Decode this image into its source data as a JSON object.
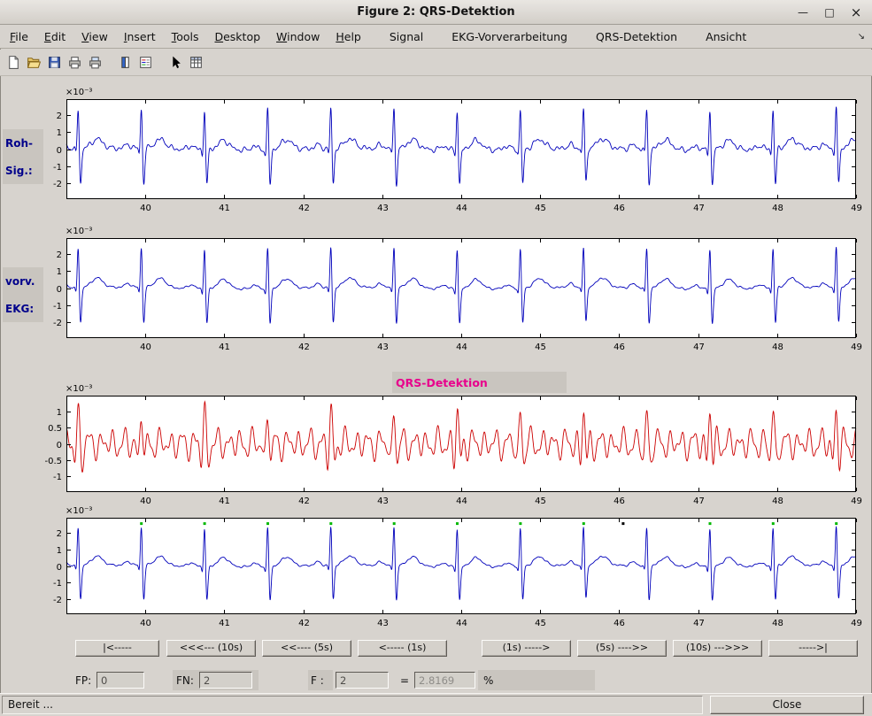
{
  "window": {
    "title": "Figure 2: QRS-Detektion",
    "minimize_glyph": "—",
    "maximize_glyph": "□",
    "close_glyph": "×"
  },
  "menu": {
    "overflow_glyph": "↘",
    "items": [
      {
        "id": "file",
        "label": "File",
        "accel": true
      },
      {
        "id": "edit",
        "label": "Edit",
        "accel": true
      },
      {
        "id": "view",
        "label": "View",
        "accel": true
      },
      {
        "id": "insert",
        "label": "Insert",
        "accel": true
      },
      {
        "id": "tools",
        "label": "Tools",
        "accel": true
      },
      {
        "id": "desktop",
        "label": "Desktop",
        "accel": true
      },
      {
        "id": "window",
        "label": "Window",
        "accel": true
      },
      {
        "id": "help",
        "label": "Help",
        "accel": true
      },
      {
        "id": "signal",
        "label": "Signal",
        "accel": false,
        "gap": true
      },
      {
        "id": "ekg-vorverarbeitung",
        "label": "EKG-Vorverarbeitung",
        "accel": false,
        "gap": true
      },
      {
        "id": "qrs-detektion",
        "label": "QRS-Detektion",
        "accel": false,
        "gap": true
      },
      {
        "id": "ansicht",
        "label": "Ansicht",
        "accel": false,
        "gap": true
      }
    ]
  },
  "toolbar": {
    "icons": [
      "new-file-icon",
      "open-folder-icon",
      "save-icon",
      "print-icon",
      "print-preview-icon",
      "colorbar-icon",
      "legend-icon",
      "pointer-icon",
      "plot-browser-icon"
    ]
  },
  "chart_data": {
    "type": "line",
    "xlim": [
      39,
      49
    ],
    "xticks": [
      40,
      41,
      42,
      43,
      44,
      45,
      46,
      47,
      48,
      49
    ],
    "x_unit": "s",
    "amplitude_scale": "1e-3",
    "beat_times": [
      39.15,
      39.95,
      40.75,
      41.55,
      42.35,
      43.15,
      43.95,
      44.75,
      45.55,
      46.35,
      47.15,
      47.95,
      48.75
    ],
    "plots": [
      {
        "name": "roh-signal",
        "label_lines": [
          "Roh-",
          "Sig.:"
        ],
        "color": "#0000bb",
        "ylim": [
          -2.9,
          2.9
        ],
        "yticks": [
          2,
          1,
          0,
          -1,
          -2
        ],
        "y_exponent": "×10⁻³",
        "signal": "ecg",
        "noise": 1
      },
      {
        "name": "vorverarbeitetes-ekg",
        "label_lines": [
          "vorv.",
          "EKG:"
        ],
        "color": "#0000bb",
        "ylim": [
          -2.9,
          2.9
        ],
        "yticks": [
          2,
          1,
          0,
          -1,
          -2
        ],
        "y_exponent": "×10⁻³",
        "signal": "ecg",
        "noise": 0.4
      },
      {
        "name": "qrs-detektion-signal",
        "title": "QRS-Detektion",
        "title_color": "#e8008c",
        "color": "#cc0000",
        "ylim": [
          -1.5,
          1.5
        ],
        "yticks": [
          1,
          0.5,
          0,
          -0.5,
          -1
        ],
        "y_exponent": "×10⁻³",
        "signal": "filtered",
        "noise": 0
      },
      {
        "name": "detektions-ergebnis",
        "color": "#0000bb",
        "ylim": [
          -2.9,
          2.9
        ],
        "yticks": [
          2,
          1,
          0,
          -1,
          -2
        ],
        "y_exponent": "×10⁻³",
        "signal": "ecg",
        "noise": 0.4,
        "markers": {
          "marker_y": 2.55,
          "green_color": "#00b800",
          "green_times": [
            39.95,
            40.75,
            41.55,
            42.35,
            43.15,
            43.95,
            44.75,
            45.55,
            47.15,
            47.95,
            48.75
          ],
          "black_color": "#000000",
          "black_times": [
            46.05
          ]
        }
      }
    ]
  },
  "nav": {
    "buttons": [
      {
        "id": "jump-to-start",
        "label": "|<-----"
      },
      {
        "id": "back-10s",
        "label": "<<<--- (10s)"
      },
      {
        "id": "back-5s",
        "label": "<<---- (5s)"
      },
      {
        "id": "back-1s",
        "label": "<----- (1s)"
      },
      {
        "id": "forward-1s",
        "label": "(1s) ----->"
      },
      {
        "id": "forward-5s",
        "label": "(5s) ---->>"
      },
      {
        "id": "forward-10s",
        "label": "(10s) --->>>"
      },
      {
        "id": "jump-to-end",
        "label": "----->|"
      }
    ]
  },
  "stats": {
    "fp_label": "FP:",
    "fp_value": "0",
    "fn_label": "FN:",
    "fn_value": "2",
    "f_label": "F :",
    "f_value": "2",
    "equals": "=",
    "result_value": "2.8169",
    "percent": "%"
  },
  "statusbar": {
    "text": "Bereit ...",
    "close_label": "Close"
  }
}
